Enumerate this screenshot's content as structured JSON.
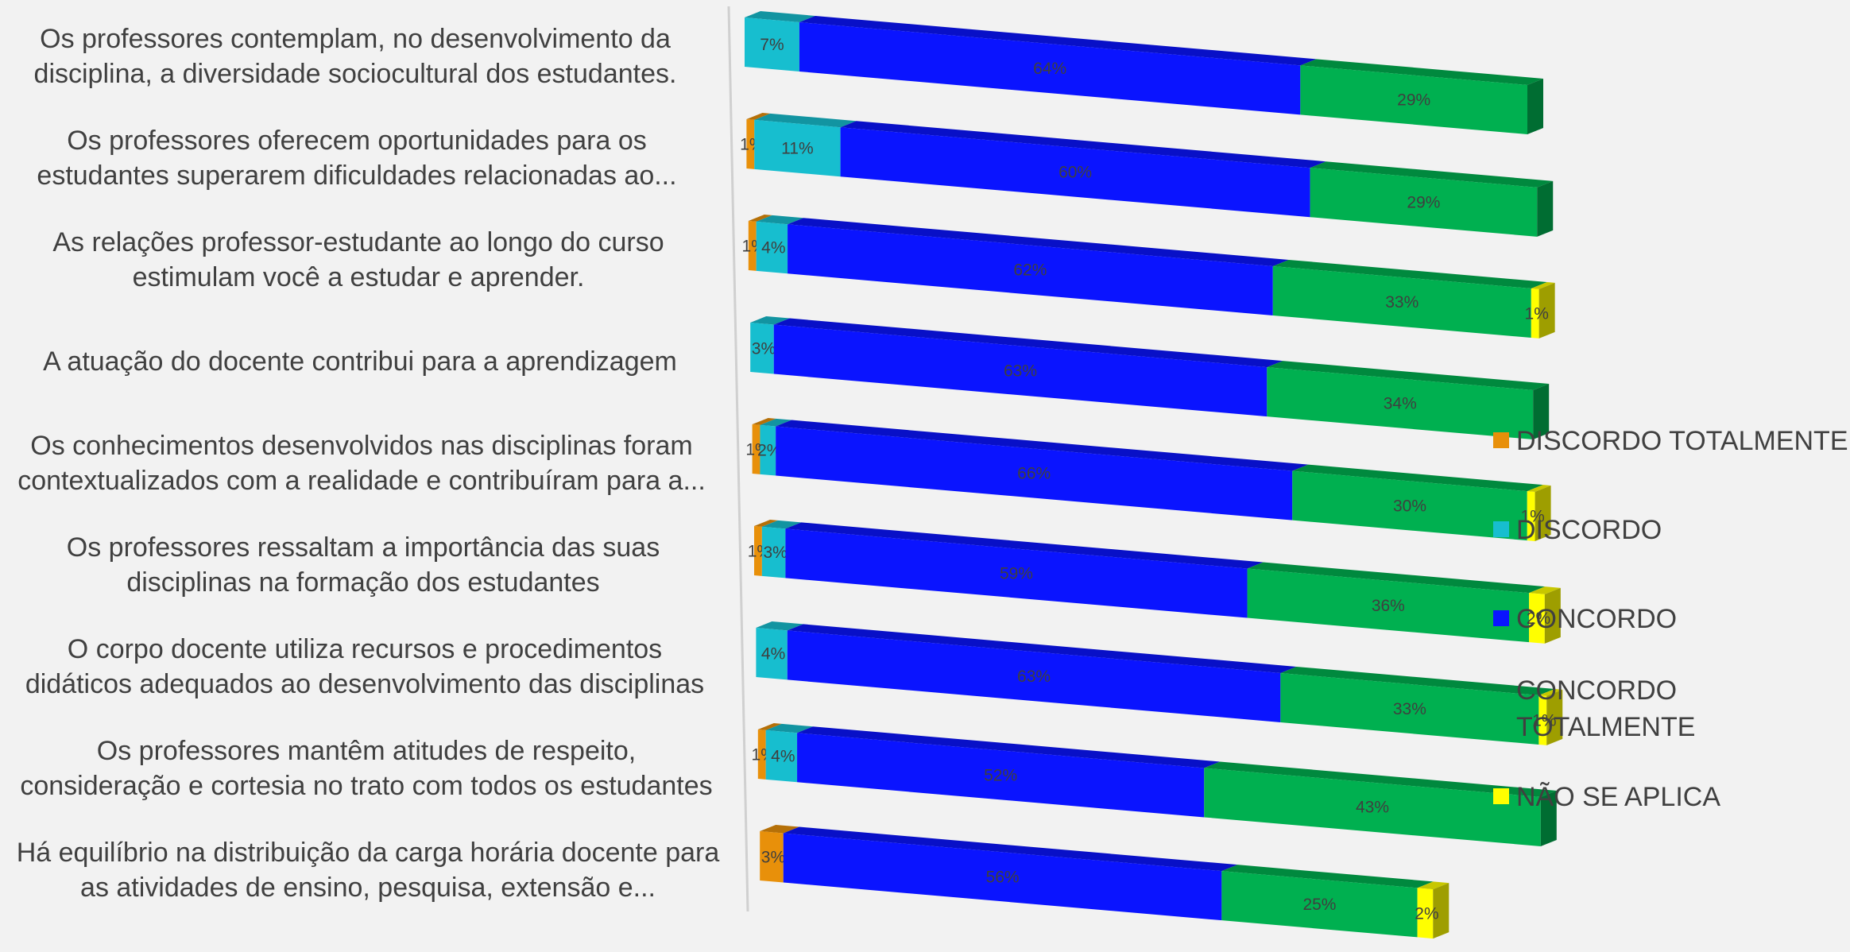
{
  "chart_data": {
    "type": "bar",
    "stacked": "100%",
    "orientation": "horizontal",
    "style": "3d",
    "categories": [
      [
        "Os professores contemplam, no desenvolvimento da",
        "disciplina, a diversidade sociocultural dos estudantes."
      ],
      [
        "Os professores oferecem oportunidades para os",
        "estudantes superarem dificuldades relacionadas ao..."
      ],
      [
        "As relações professor-estudante ao longo do curso",
        "estimulam você a estudar e aprender."
      ],
      [
        "A atuação do docente contribui para a aprendizagem"
      ],
      [
        "Os conhecimentos desenvolvidos nas disciplinas foram",
        "contextualizados com a realidade e contribuíram para a..."
      ],
      [
        "Os professores ressaltam a importância das suas",
        "disciplinas na formação dos estudantes"
      ],
      [
        "O corpo docente utiliza recursos e procedimentos",
        "didáticos adequados ao desenvolvimento das disciplinas"
      ],
      [
        "Os professores mantêm atitudes de respeito,",
        "consideração e cortesia no trato com todos os estudantes"
      ],
      [
        "Há equilíbrio na distribuição da carga horária docente para",
        "as atividades de ensino, pesquisa, extensão e..."
      ]
    ],
    "series": [
      {
        "name": "DISCORDO TOTALMENTE",
        "color": "#e8900a",
        "values": [
          0,
          1,
          1,
          0,
          1,
          1,
          0,
          1,
          3
        ]
      },
      {
        "name": "DISCORDO",
        "color": "#17becf",
        "values": [
          7,
          11,
          4,
          3,
          2,
          3,
          4,
          4,
          0
        ]
      },
      {
        "name": "CONCORDO",
        "color": "#0a14ff",
        "values": [
          64,
          60,
          62,
          63,
          66,
          59,
          63,
          52,
          56
        ]
      },
      {
        "name": "CONCORDO TOTALMENTE",
        "color": "#00b050",
        "values": [
          29,
          29,
          33,
          34,
          30,
          36,
          33,
          43,
          25
        ]
      },
      {
        "name": "NÃO SE APLICA",
        "color": "#ffff00",
        "values": [
          0,
          0,
          1,
          0,
          1,
          2,
          1,
          0,
          2
        ]
      }
    ],
    "data_labels": [
      [
        "",
        "7%",
        "64%",
        "29%",
        ""
      ],
      [
        "1%",
        "11%",
        "60%",
        "29%",
        ""
      ],
      [
        "1%",
        "4%",
        "62%",
        "33%",
        "1%"
      ],
      [
        "",
        "3%",
        "63%",
        "34%",
        ""
      ],
      [
        "1%",
        "2%",
        "66%",
        "30%",
        "1%"
      ],
      [
        "1%",
        "3%",
        "59%",
        "36%",
        "2%"
      ],
      [
        "",
        "4%",
        "63%",
        "33%",
        "1%"
      ],
      [
        "1%",
        "4%",
        "52%",
        "43%",
        ""
      ],
      [
        "3%",
        "",
        "56%",
        "25%",
        "2%"
      ]
    ],
    "legend_position": "right",
    "grid": false,
    "title": "",
    "xlabel": "",
    "ylabel": ""
  }
}
